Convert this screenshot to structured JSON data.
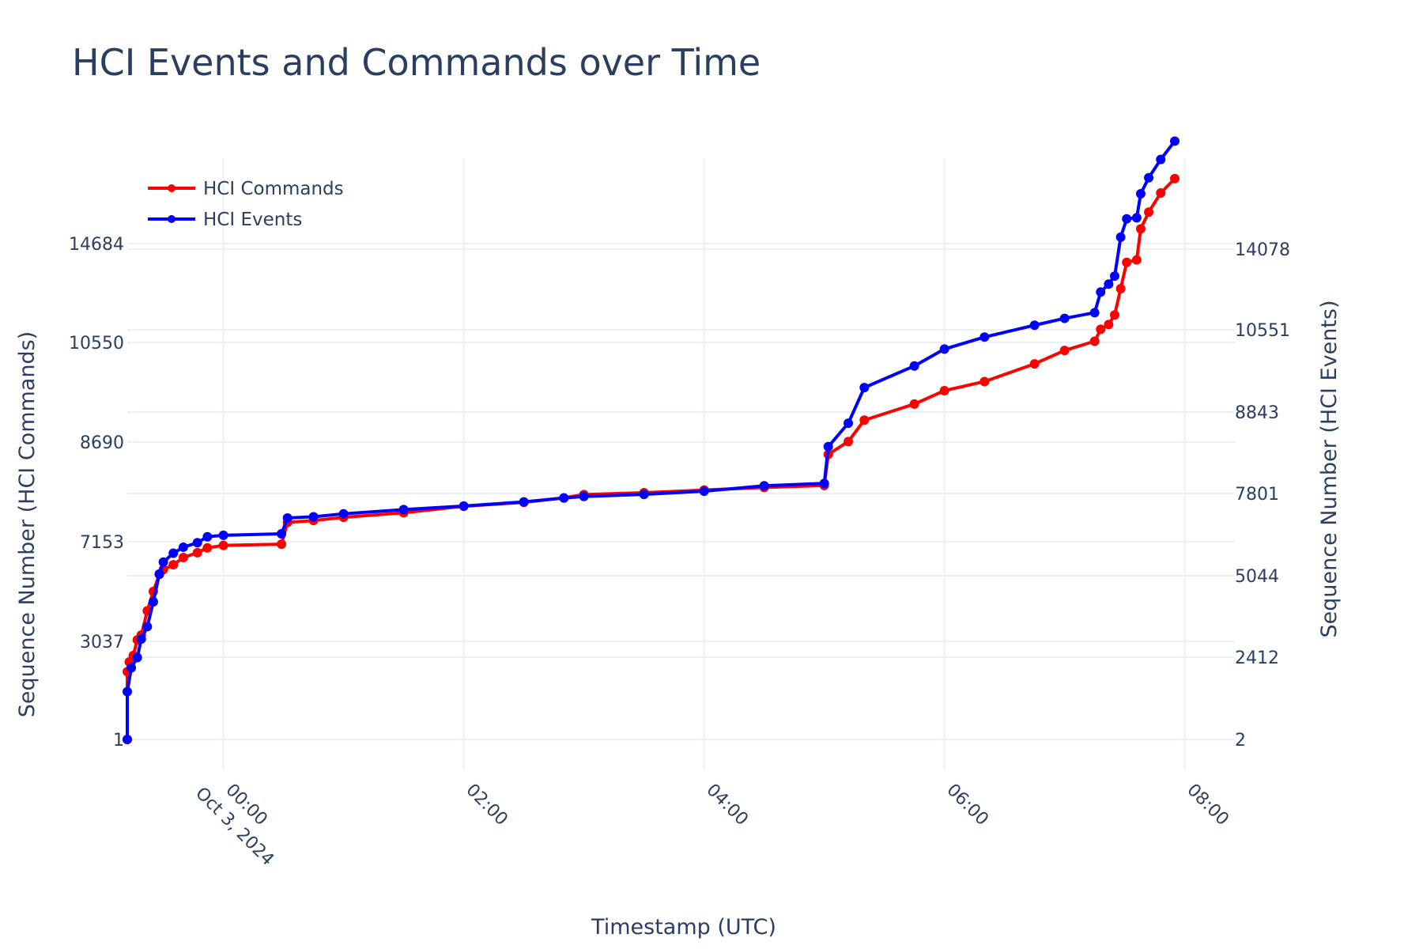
{
  "chart_data": {
    "type": "line",
    "title": "HCI Events and Commands over Time",
    "xlabel": "Timestamp (UTC)",
    "ylabel_left": "Sequence Number (HCI Commands)",
    "ylabel_right": "Sequence Number (HCI Events)",
    "x_range": [
      "2024-10-02T23:12",
      "2024-10-03T08:25"
    ],
    "x_ticks": [
      {
        "value": "2024-10-03T00:00",
        "label": "00:00",
        "sublabel": "Oct 3, 2024"
      },
      {
        "value": "2024-10-03T02:00",
        "label": "02:00",
        "sublabel": ""
      },
      {
        "value": "2024-10-03T04:00",
        "label": "04:00",
        "sublabel": ""
      },
      {
        "value": "2024-10-03T06:00",
        "label": "06:00",
        "sublabel": ""
      },
      {
        "value": "2024-10-03T08:00",
        "label": "08:00",
        "sublabel": ""
      }
    ],
    "y_left_ticks": [
      1,
      3037,
      7153,
      8690,
      10550,
      14684
    ],
    "y_right_ticks": [
      2,
      2412,
      5044,
      7801,
      8843,
      10551,
      14078
    ],
    "legend_position": "top-left",
    "grid": true,
    "series": [
      {
        "name": "HCI Commands",
        "color": "#ff0000",
        "axis": "left",
        "points": [
          [
            "2024-10-02T23:12",
            1
          ],
          [
            "2024-10-02T23:12",
            2100
          ],
          [
            "2024-10-02T23:13",
            2400
          ],
          [
            "2024-10-02T23:15",
            2600
          ],
          [
            "2024-10-02T23:17",
            3100
          ],
          [
            "2024-10-02T23:19",
            3300
          ],
          [
            "2024-10-02T23:22",
            4300
          ],
          [
            "2024-10-02T23:25",
            5100
          ],
          [
            "2024-10-02T23:28",
            5800
          ],
          [
            "2024-10-02T23:30",
            6000
          ],
          [
            "2024-10-02T23:35",
            6200
          ],
          [
            "2024-10-02T23:40",
            6500
          ],
          [
            "2024-10-02T23:47",
            6700
          ],
          [
            "2024-10-02T23:52",
            6900
          ],
          [
            "2024-10-03T00:00",
            7000
          ],
          [
            "2024-10-03T00:29",
            7050
          ],
          [
            "2024-10-03T00:32",
            7450
          ],
          [
            "2024-10-03T00:45",
            7480
          ],
          [
            "2024-10-03T01:00",
            7530
          ],
          [
            "2024-10-03T01:30",
            7600
          ],
          [
            "2024-10-03T02:00",
            7700
          ],
          [
            "2024-10-03T02:30",
            7760
          ],
          [
            "2024-10-03T02:50",
            7830
          ],
          [
            "2024-10-03T03:00",
            7880
          ],
          [
            "2024-10-03T03:30",
            7910
          ],
          [
            "2024-10-03T04:00",
            7950
          ],
          [
            "2024-10-03T04:30",
            7990
          ],
          [
            "2024-10-03T05:00",
            8020
          ],
          [
            "2024-10-03T05:02",
            8500
          ],
          [
            "2024-10-03T05:12",
            8700
          ],
          [
            "2024-10-03T05:20",
            9100
          ],
          [
            "2024-10-03T05:45",
            9400
          ],
          [
            "2024-10-03T06:00",
            9650
          ],
          [
            "2024-10-03T06:20",
            9820
          ],
          [
            "2024-10-03T06:45",
            10150
          ],
          [
            "2024-10-03T07:00",
            10400
          ],
          [
            "2024-10-03T07:15",
            10600
          ],
          [
            "2024-10-03T07:18",
            11100
          ],
          [
            "2024-10-03T07:22",
            11300
          ],
          [
            "2024-10-03T07:25",
            11700
          ],
          [
            "2024-10-03T07:28",
            12800
          ],
          [
            "2024-10-03T07:31",
            13900
          ],
          [
            "2024-10-03T07:36",
            14000
          ],
          [
            "2024-10-03T07:38",
            15300
          ],
          [
            "2024-10-03T07:42",
            16000
          ],
          [
            "2024-10-03T07:48",
            16800
          ],
          [
            "2024-10-03T07:55",
            17400
          ]
        ]
      },
      {
        "name": "HCI Events",
        "color": "#0000ff",
        "axis": "right",
        "points": [
          [
            "2024-10-02T23:12",
            2
          ],
          [
            "2024-10-02T23:12",
            1400
          ],
          [
            "2024-10-02T23:14",
            2100
          ],
          [
            "2024-10-02T23:17",
            2400
          ],
          [
            "2024-10-02T23:19",
            3000
          ],
          [
            "2024-10-02T23:22",
            3400
          ],
          [
            "2024-10-02T23:25",
            4200
          ],
          [
            "2024-10-02T23:28",
            5100
          ],
          [
            "2024-10-02T23:30",
            5500
          ],
          [
            "2024-10-02T23:35",
            5800
          ],
          [
            "2024-10-02T23:40",
            6000
          ],
          [
            "2024-10-02T23:47",
            6150
          ],
          [
            "2024-10-02T23:52",
            6350
          ],
          [
            "2024-10-03T00:00",
            6400
          ],
          [
            "2024-10-03T00:29",
            6450
          ],
          [
            "2024-10-03T00:32",
            6980
          ],
          [
            "2024-10-03T00:45",
            7020
          ],
          [
            "2024-10-03T01:00",
            7120
          ],
          [
            "2024-10-03T01:30",
            7260
          ],
          [
            "2024-10-03T02:00",
            7380
          ],
          [
            "2024-10-03T02:30",
            7520
          ],
          [
            "2024-10-03T02:50",
            7650
          ],
          [
            "2024-10-03T03:00",
            7700
          ],
          [
            "2024-10-03T03:30",
            7770
          ],
          [
            "2024-10-03T04:00",
            7830
          ],
          [
            "2024-10-03T04:30",
            7900
          ],
          [
            "2024-10-03T05:00",
            7930
          ],
          [
            "2024-10-03T05:02",
            8400
          ],
          [
            "2024-10-03T05:12",
            8700
          ],
          [
            "2024-10-03T05:20",
            9350
          ],
          [
            "2024-10-03T05:45",
            9800
          ],
          [
            "2024-10-03T06:00",
            10150
          ],
          [
            "2024-10-03T06:20",
            10400
          ],
          [
            "2024-10-03T06:45",
            10750
          ],
          [
            "2024-10-03T07:00",
            11050
          ],
          [
            "2024-10-03T07:15",
            11300
          ],
          [
            "2024-10-03T07:18",
            12200
          ],
          [
            "2024-10-03T07:22",
            12550
          ],
          [
            "2024-10-03T07:25",
            12900
          ],
          [
            "2024-10-03T07:28",
            14600
          ],
          [
            "2024-10-03T07:31",
            15400
          ],
          [
            "2024-10-03T07:36",
            15450
          ],
          [
            "2024-10-03T07:38",
            16500
          ],
          [
            "2024-10-03T07:42",
            17200
          ],
          [
            "2024-10-03T07:48",
            18000
          ],
          [
            "2024-10-03T07:55",
            18800
          ]
        ]
      }
    ]
  }
}
